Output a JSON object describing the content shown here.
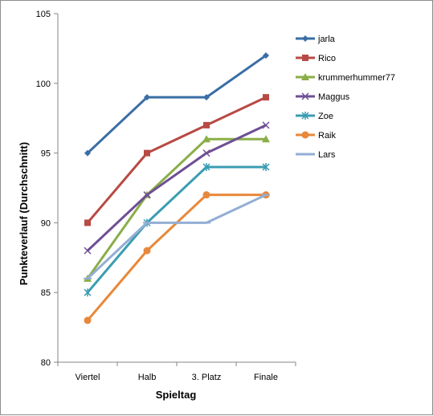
{
  "chart_data": {
    "type": "line",
    "title": "",
    "xlabel": "Spieltag",
    "ylabel": "Punkteverlauf (Durchschnitt)",
    "categories": [
      "Viertel",
      "Halb",
      "3. Platz",
      "Finale"
    ],
    "ylim": [
      80,
      105
    ],
    "yticks": [
      80,
      85,
      90,
      95,
      100,
      105
    ],
    "grid": false,
    "legend_position": "right",
    "series": [
      {
        "name": "jarla",
        "values": [
          95,
          99,
          99,
          102
        ],
        "color": "#3a6ea5",
        "marker": "diamond"
      },
      {
        "name": "Rico",
        "values": [
          90,
          95,
          97,
          99
        ],
        "color": "#b84a44",
        "marker": "square"
      },
      {
        "name": "krummerhummer77",
        "values": [
          86,
          92,
          96,
          96
        ],
        "color": "#8aae48",
        "marker": "triangle"
      },
      {
        "name": "Maggus",
        "values": [
          88,
          92,
          95,
          97
        ],
        "color": "#6e4f94",
        "marker": "x"
      },
      {
        "name": "Zoe",
        "values": [
          85,
          90,
          94,
          94
        ],
        "color": "#3a9db2",
        "marker": "star"
      },
      {
        "name": "Raik",
        "values": [
          83,
          88,
          92,
          92
        ],
        "color": "#e8883a",
        "marker": "circle"
      },
      {
        "name": "Lars",
        "values": [
          86,
          90,
          90,
          92
        ],
        "color": "#93aed4",
        "marker": "plus"
      }
    ]
  }
}
